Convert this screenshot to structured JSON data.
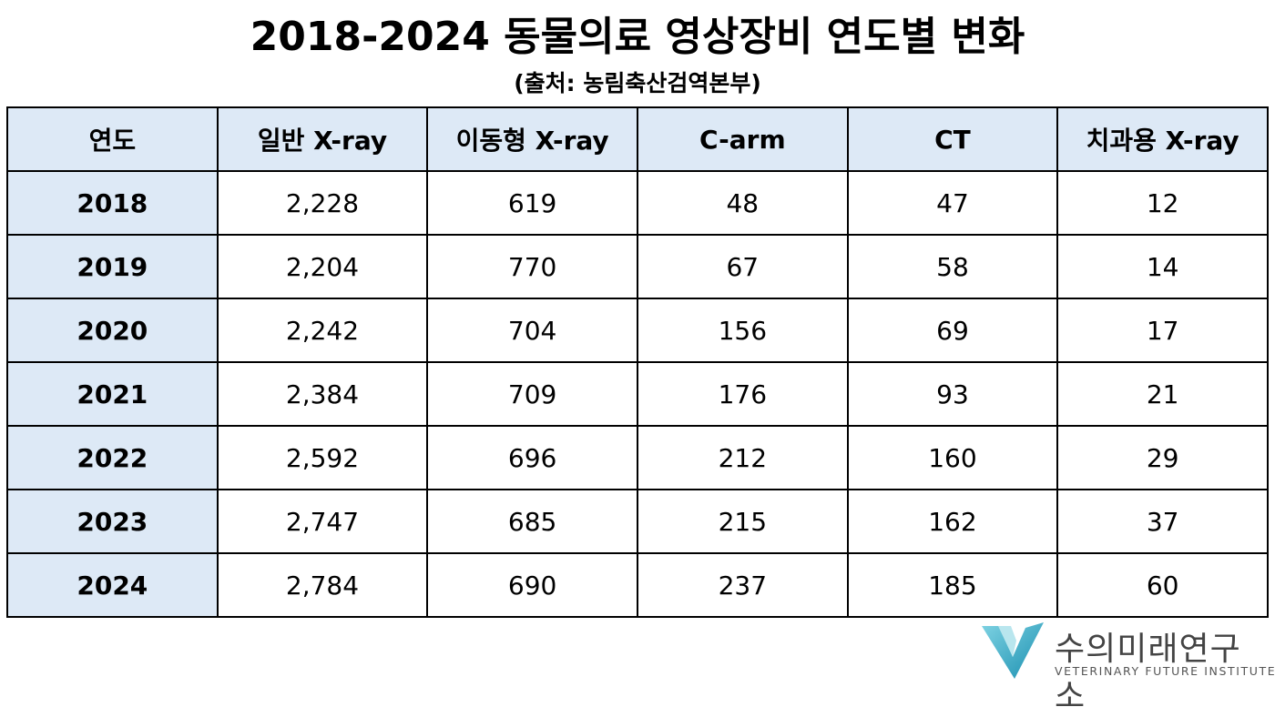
{
  "header": {
    "title": "2018-2024 동물의료 영상장비 연도별 변화",
    "subtitle": "(출처: 농림축산검역본부)"
  },
  "table": {
    "columns": [
      "연도",
      "일반 X-ray",
      "이동형 X-ray",
      "C-arm",
      "CT",
      "치과용 X-ray"
    ],
    "rows": [
      [
        "2018",
        "2,228",
        "619",
        "48",
        "47",
        "12"
      ],
      [
        "2019",
        "2,204",
        "770",
        "67",
        "58",
        "14"
      ],
      [
        "2020",
        "2,242",
        "704",
        "156",
        "69",
        "17"
      ],
      [
        "2021",
        "2,384",
        "709",
        "176",
        "93",
        "21"
      ],
      [
        "2022",
        "2,592",
        "696",
        "212",
        "160",
        "29"
      ],
      [
        "2023",
        "2,747",
        "685",
        "215",
        "162",
        "37"
      ],
      [
        "2024",
        "2,784",
        "690",
        "237",
        "185",
        "60"
      ]
    ]
  },
  "logo": {
    "name": "수의미래연구소",
    "tagline": "VETERINARY FUTURE INSTITUTE"
  }
}
